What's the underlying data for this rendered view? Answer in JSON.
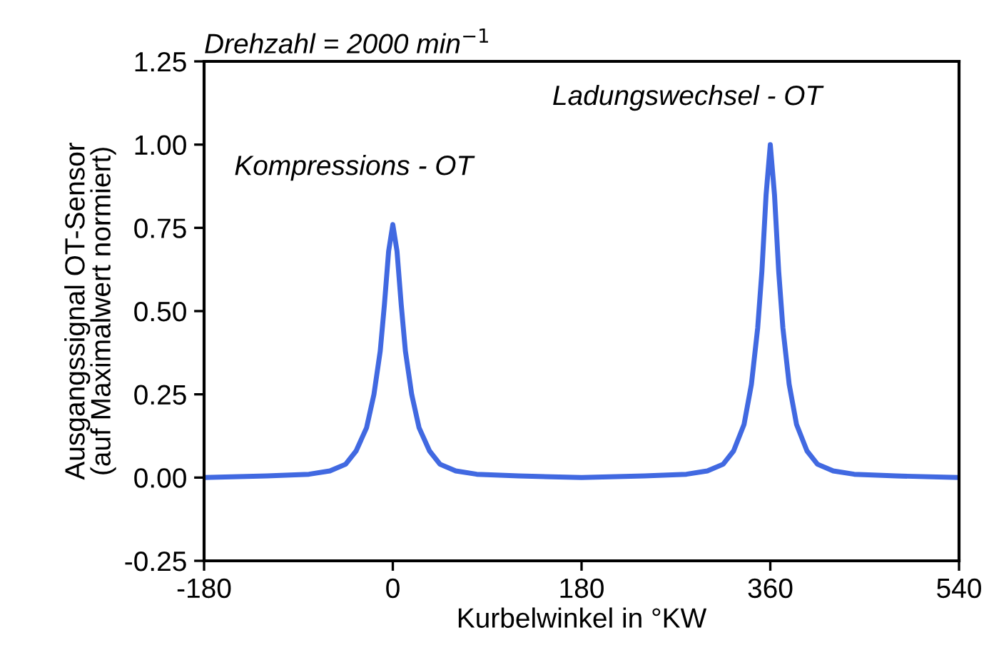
{
  "chart_data": {
    "type": "line",
    "title": "Drehzahl = 2000 min$^{−1}$",
    "xlabel": "Kurbelwinkel in °KW",
    "ylabel": "Ausgangssignal OT-Sensor\n(auf Maximalwert normiert)",
    "annotations": [
      {
        "text": "Kompressions - OT",
        "x": 0,
        "y": 0.76
      },
      {
        "text": "Ladungswechsel - OT",
        "x": 360,
        "y": 1.0
      }
    ],
    "xlim": [
      -180,
      540
    ],
    "xticks": [
      -180,
      0,
      180,
      360,
      540
    ],
    "ylim": [
      -0.25,
      1.25
    ],
    "yticks": [
      {
        "value": -0.25,
        "label": "-0.25"
      },
      {
        "value": 0,
        "label": "0.00"
      },
      {
        "value": 0.25,
        "label": "0.25"
      },
      {
        "value": 0.5,
        "label": "0.50"
      },
      {
        "value": 0.75,
        "label": "0.75"
      },
      {
        "value": 1.0,
        "label": "1.00"
      },
      {
        "value": 1.25,
        "label": "1.25"
      }
    ],
    "grid": false,
    "legend": false,
    "marker": "none",
    "line_style": "solid",
    "series": [
      {
        "color": "#4169e1",
        "x": [
          -180,
          -120,
          -80,
          -60,
          -45,
          -35,
          -25,
          -18,
          -12,
          -8,
          -4,
          0,
          4,
          8,
          12,
          18,
          25,
          35,
          45,
          60,
          80,
          120,
          180,
          240,
          280,
          300,
          315,
          325,
          335,
          342,
          348,
          352,
          356,
          360,
          364,
          368,
          372,
          378,
          385,
          395,
          405,
          420,
          440,
          480,
          540
        ],
        "values": [
          0.0,
          0.005,
          0.01,
          0.02,
          0.04,
          0.08,
          0.15,
          0.25,
          0.38,
          0.52,
          0.68,
          0.76,
          0.68,
          0.52,
          0.38,
          0.25,
          0.15,
          0.08,
          0.04,
          0.02,
          0.01,
          0.005,
          0.0,
          0.005,
          0.01,
          0.02,
          0.04,
          0.08,
          0.16,
          0.28,
          0.45,
          0.62,
          0.85,
          1.0,
          0.85,
          0.62,
          0.45,
          0.28,
          0.16,
          0.08,
          0.04,
          0.02,
          0.01,
          0.005,
          0.0
        ]
      }
    ]
  }
}
